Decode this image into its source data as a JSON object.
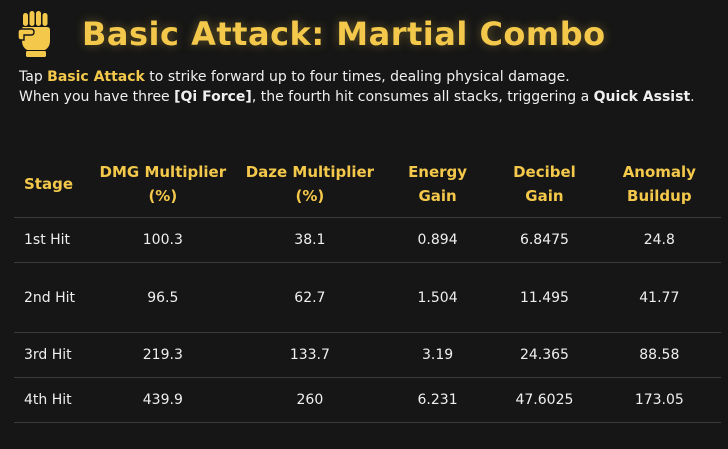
{
  "header": {
    "icon": "fist-icon",
    "title": "Basic Attack: Martial Combo"
  },
  "description": {
    "l1_pre": "Tap ",
    "l1_bold": "Basic Attack",
    "l1_post": " to strike forward up to four times, dealing physical damage.",
    "l2_pre": "When you have three ",
    "l2_bold": "[Qi Force]",
    "l2_mid": ", the fourth hit consumes all stacks, triggering a ",
    "l2_bold2": "Quick Assist",
    "l2_post": "."
  },
  "table": {
    "headers": [
      "Stage",
      "DMG Multiplier (%)",
      "Daze Multiplier (%)",
      "Energy Gain",
      "Decibel Gain",
      "Anomaly Buildup"
    ],
    "rows": [
      [
        "1st Hit",
        "100.3",
        "38.1",
        "0.894",
        "6.8475",
        "24.8"
      ],
      [
        "2nd Hit",
        "96.5",
        "62.7",
        "1.504",
        "11.495",
        "41.77"
      ],
      [
        "3rd Hit",
        "219.3",
        "133.7",
        "3.19",
        "24.365",
        "88.58"
      ],
      [
        "4th Hit",
        "439.9",
        "260",
        "6.231",
        "47.6025",
        "173.05"
      ]
    ]
  },
  "colors": {
    "accent": "#f3c84b",
    "background": "#161616",
    "text": "#ececec"
  }
}
